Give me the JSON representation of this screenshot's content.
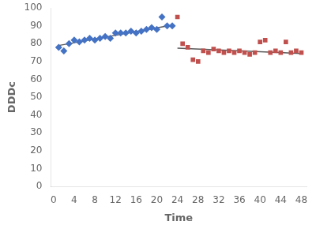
{
  "chart_data": {
    "type": "scatter",
    "xlabel": "Time",
    "ylabel": "DDDc",
    "xlim": [
      -0.5,
      49
    ],
    "ylim": [
      0,
      100
    ],
    "xticks": [
      0,
      4,
      8,
      12,
      16,
      20,
      24,
      28,
      32,
      36,
      40,
      44,
      48
    ],
    "yticks": [
      0,
      10,
      20,
      30,
      40,
      50,
      60,
      70,
      80,
      90,
      100
    ],
    "grid": false,
    "series": [
      {
        "type": "scatter",
        "color": "#4472C4",
        "marker": "diamond",
        "x": [
          1,
          2,
          3,
          4,
          5,
          6,
          7,
          8,
          9,
          10,
          11,
          12,
          13,
          14,
          15,
          16,
          17,
          18,
          19,
          20,
          21,
          22,
          23
        ],
        "values": [
          78,
          76,
          80,
          82,
          81,
          82,
          83,
          82,
          83,
          84,
          83,
          86,
          86,
          86,
          87,
          86,
          87,
          88,
          89,
          88,
          95,
          90,
          90
        ]
      },
      {
        "type": "scatter",
        "color": "#C0504D",
        "marker": "square",
        "x": [
          24,
          25,
          26,
          27,
          28,
          29,
          30,
          31,
          32,
          33,
          34,
          35,
          36,
          37,
          38,
          39,
          40,
          41,
          42,
          43,
          44,
          45,
          46,
          47,
          48
        ],
        "values": [
          95,
          80,
          78,
          71,
          70,
          76,
          75,
          77,
          76,
          75,
          76,
          75,
          76,
          75,
          74,
          75,
          81,
          82,
          75,
          76,
          75,
          81,
          75,
          76,
          75
        ]
      },
      {
        "type": "line",
        "color": "#595959",
        "line_style": "solid",
        "x": [
          1,
          23
        ],
        "values": [
          79.0,
          90.5
        ]
      },
      {
        "type": "line",
        "color": "#595959",
        "line_style": "solid",
        "x": [
          24,
          48
        ],
        "values": [
          77.5,
          74.5
        ]
      }
    ]
  }
}
